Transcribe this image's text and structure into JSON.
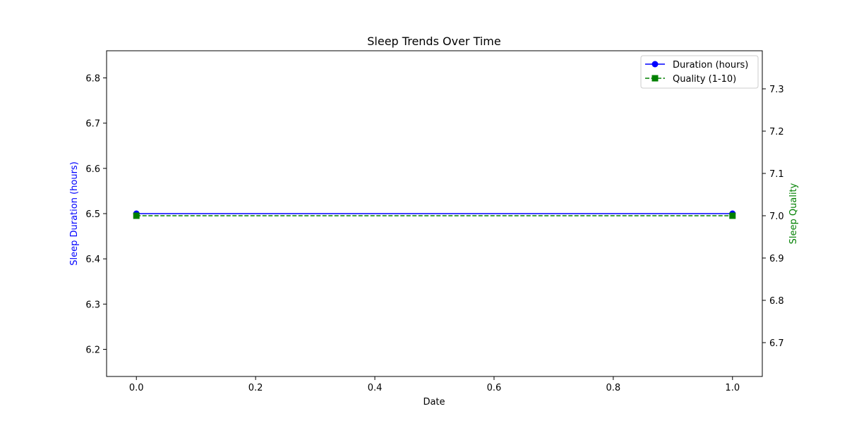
{
  "chart_data": {
    "type": "line",
    "title": "Sleep Trends Over Time",
    "xlabel": "Date",
    "ylabel_left": "Sleep Duration (hours)",
    "ylabel_right": "Sleep Quality",
    "xlim": [
      -0.05,
      1.05
    ],
    "ylim_left": [
      6.14,
      6.86
    ],
    "ylim_right": [
      6.62,
      7.39
    ],
    "x_ticks": [
      0.0,
      0.2,
      0.4,
      0.6,
      0.8,
      1.0
    ],
    "x_tick_labels": [
      "0.0",
      "0.2",
      "0.4",
      "0.6",
      "0.8",
      "1.0"
    ],
    "y_left_ticks": [
      6.2,
      6.3,
      6.4,
      6.5,
      6.6,
      6.7,
      6.8
    ],
    "y_left_tick_labels": [
      "6.2",
      "6.3",
      "6.4",
      "6.5",
      "6.6",
      "6.7",
      "6.8"
    ],
    "y_right_ticks": [
      6.7,
      6.8,
      6.9,
      7.0,
      7.1,
      7.2,
      7.3
    ],
    "y_right_tick_labels": [
      "6.7",
      "6.8",
      "6.9",
      "7.0",
      "7.1",
      "7.2",
      "7.3"
    ],
    "grid": false,
    "legend_position": "top-right",
    "series": [
      {
        "name": "Duration (hours)",
        "axis": "left",
        "x": [
          0,
          1
        ],
        "values": [
          6.5,
          6.5
        ],
        "color": "#0000ff",
        "marker": "circle",
        "line_style": "solid"
      },
      {
        "name": "Quality (1-10)",
        "axis": "right",
        "x": [
          0,
          1
        ],
        "values": [
          7.0,
          7.0
        ],
        "color": "#008000",
        "marker": "square",
        "line_style": "dashed"
      }
    ],
    "colors": {
      "left_axis_label": "#0000ff",
      "right_axis_label": "#008000"
    }
  }
}
